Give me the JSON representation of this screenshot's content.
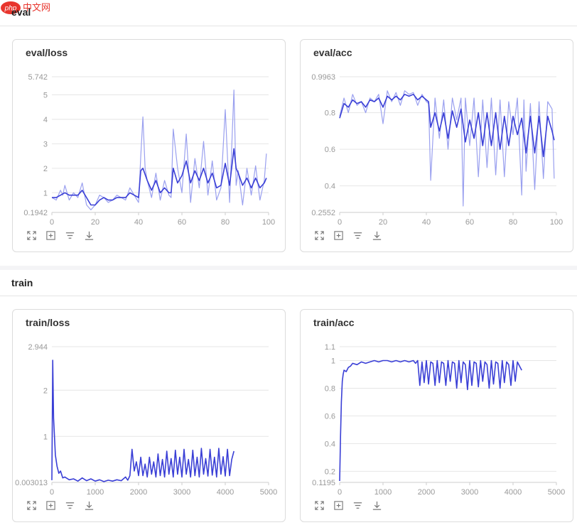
{
  "watermark": {
    "logo_text": "php",
    "text": "中文网"
  },
  "sections": [
    {
      "title": "eval"
    },
    {
      "title": "train"
    }
  ],
  "toolbar_icons": [
    "expand-icon",
    "fit-view-icon",
    "filter-icon",
    "download-icon"
  ],
  "colors": {
    "line_main": "#3a3fd6",
    "line_raw": "#9aa0ef",
    "grid": "#e6e6e6",
    "axis_text": "#999999"
  },
  "charts": [
    {
      "id": "eval-loss",
      "title": "eval/loss",
      "chart_data": {
        "type": "line",
        "xlim": [
          0,
          100
        ],
        "ylim": [
          0.1942,
          5.742
        ],
        "x_ticks": [
          0,
          20,
          40,
          60,
          80,
          100
        ],
        "y_ticks": [
          1,
          2,
          3,
          4,
          5
        ],
        "y_min_label": "0.1942",
        "y_max_label": "5.742",
        "series": [
          {
            "role": "raw",
            "x": [
              0,
              2,
              4,
              5,
              6,
              8,
              10,
              12,
              14,
              16,
              18,
              20,
              22,
              24,
              26,
              28,
              30,
              32,
              34,
              36,
              38,
              40,
              41,
              42,
              43,
              44,
              46,
              48,
              50,
              52,
              54,
              55,
              56,
              58,
              60,
              62,
              64,
              66,
              68,
              70,
              72,
              74,
              76,
              78,
              80,
              82,
              84,
              85,
              86,
              88,
              90,
              92,
              94,
              96,
              98,
              99
            ],
            "y": [
              0.8,
              0.7,
              1.1,
              0.9,
              1.3,
              0.7,
              1.0,
              0.8,
              1.4,
              0.5,
              0.3,
              0.5,
              0.9,
              0.8,
              0.6,
              0.7,
              0.9,
              0.8,
              0.7,
              1.2,
              0.9,
              0.6,
              2.5,
              4.1,
              2.0,
              1.5,
              0.8,
              1.8,
              0.7,
              1.5,
              0.9,
              0.8,
              3.6,
              2.0,
              1.0,
              3.4,
              0.6,
              2.4,
              1.2,
              3.1,
              0.9,
              2.3,
              0.7,
              1.2,
              4.4,
              0.6,
              5.2,
              1.3,
              1.9,
              0.5,
              2.0,
              0.9,
              2.1,
              0.7,
              1.5,
              2.6
            ]
          },
          {
            "role": "smoothed",
            "x": [
              0,
              2,
              4,
              6,
              8,
              10,
              12,
              14,
              16,
              18,
              20,
              22,
              24,
              26,
              28,
              30,
              32,
              34,
              36,
              38,
              40,
              41,
              42,
              44,
              46,
              48,
              50,
              52,
              54,
              55,
              56,
              58,
              60,
              62,
              64,
              66,
              68,
              70,
              72,
              74,
              76,
              78,
              80,
              82,
              84,
              85,
              86,
              88,
              90,
              92,
              94,
              96,
              98,
              99
            ],
            "y": [
              0.8,
              0.8,
              0.9,
              1.0,
              0.9,
              0.9,
              0.9,
              1.1,
              0.8,
              0.5,
              0.5,
              0.7,
              0.8,
              0.7,
              0.7,
              0.8,
              0.8,
              0.8,
              1.0,
              0.9,
              0.8,
              1.9,
              2.0,
              1.5,
              1.1,
              1.5,
              1.0,
              1.2,
              1.0,
              1.0,
              2.0,
              1.4,
              1.7,
              2.3,
              1.4,
              1.9,
              1.5,
              2.0,
              1.4,
              1.8,
              1.2,
              1.3,
              2.2,
              1.3,
              2.8,
              2.0,
              1.8,
              1.3,
              1.6,
              1.2,
              1.6,
              1.2,
              1.4,
              1.6
            ]
          }
        ]
      }
    },
    {
      "id": "eval-acc",
      "title": "eval/acc",
      "chart_data": {
        "type": "line",
        "xlim": [
          0,
          100
        ],
        "ylim": [
          0.2552,
          0.9963
        ],
        "x_ticks": [
          0,
          20,
          40,
          60,
          80,
          100
        ],
        "y_ticks": [
          0.4,
          0.6,
          0.8
        ],
        "y_min_label": "0.2552",
        "y_max_label": "0.9963",
        "series": [
          {
            "role": "raw",
            "x": [
              0,
              2,
              4,
              6,
              8,
              10,
              12,
              14,
              16,
              18,
              20,
              22,
              24,
              26,
              28,
              30,
              32,
              34,
              36,
              38,
              40,
              41,
              42,
              44,
              46,
              48,
              50,
              52,
              54,
              56,
              57,
              58,
              60,
              62,
              64,
              66,
              68,
              70,
              72,
              74,
              76,
              78,
              80,
              82,
              84,
              85,
              86,
              88,
              90,
              92,
              94,
              96,
              98,
              99
            ],
            "y": [
              0.78,
              0.88,
              0.8,
              0.9,
              0.84,
              0.86,
              0.8,
              0.88,
              0.86,
              0.9,
              0.74,
              0.92,
              0.86,
              0.91,
              0.84,
              0.92,
              0.9,
              0.91,
              0.84,
              0.9,
              0.86,
              0.85,
              0.43,
              0.88,
              0.66,
              0.87,
              0.6,
              0.88,
              0.76,
              0.88,
              0.29,
              0.88,
              0.62,
              0.88,
              0.45,
              0.87,
              0.5,
              0.88,
              0.46,
              0.87,
              0.45,
              0.86,
              0.68,
              0.88,
              0.35,
              0.87,
              0.48,
              0.85,
              0.38,
              0.86,
              0.44,
              0.86,
              0.82,
              0.44
            ]
          },
          {
            "role": "smoothed",
            "x": [
              0,
              2,
              4,
              6,
              8,
              10,
              12,
              14,
              16,
              18,
              20,
              22,
              24,
              26,
              28,
              30,
              32,
              34,
              36,
              38,
              40,
              41,
              42,
              44,
              46,
              48,
              50,
              52,
              54,
              56,
              58,
              60,
              62,
              64,
              66,
              68,
              70,
              72,
              74,
              76,
              78,
              80,
              82,
              84,
              86,
              88,
              90,
              92,
              94,
              96,
              98,
              99
            ],
            "y": [
              0.77,
              0.85,
              0.83,
              0.87,
              0.85,
              0.86,
              0.83,
              0.87,
              0.86,
              0.88,
              0.83,
              0.89,
              0.87,
              0.89,
              0.87,
              0.9,
              0.89,
              0.9,
              0.87,
              0.89,
              0.87,
              0.86,
              0.72,
              0.8,
              0.7,
              0.8,
              0.66,
              0.81,
              0.72,
              0.82,
              0.64,
              0.76,
              0.66,
              0.8,
              0.62,
              0.8,
              0.62,
              0.8,
              0.6,
              0.78,
              0.62,
              0.78,
              0.68,
              0.77,
              0.58,
              0.78,
              0.58,
              0.78,
              0.56,
              0.78,
              0.7,
              0.65
            ]
          }
        ]
      }
    },
    {
      "id": "train-loss",
      "title": "train/loss",
      "chart_data": {
        "type": "line",
        "xlim": [
          0,
          5000
        ],
        "ylim": [
          0.003013,
          2.944
        ],
        "x_ticks": [
          0,
          1000,
          2000,
          3000,
          4000,
          5000
        ],
        "y_ticks": [
          1,
          2
        ],
        "y_min_label": "0.003013",
        "y_max_label": "2.944",
        "series": [
          {
            "role": "smoothed",
            "x": [
              0,
              20,
              40,
              80,
              120,
              160,
              200,
              250,
              300,
              400,
              500,
              600,
              700,
              800,
              900,
              1000,
              1100,
              1200,
              1300,
              1400,
              1500,
              1600,
              1700,
              1750,
              1800,
              1850,
              1900,
              1950,
              2000,
              2050,
              2100,
              2150,
              2200,
              2250,
              2300,
              2350,
              2400,
              2450,
              2500,
              2550,
              2600,
              2650,
              2700,
              2750,
              2800,
              2850,
              2900,
              2950,
              3000,
              3050,
              3100,
              3150,
              3200,
              3250,
              3300,
              3350,
              3400,
              3450,
              3500,
              3550,
              3600,
              3650,
              3700,
              3750,
              3800,
              3850,
              3900,
              3950,
              4000,
              4050,
              4100,
              4150,
              4200
            ],
            "y": [
              0.05,
              2.65,
              1.4,
              0.6,
              0.35,
              0.2,
              0.25,
              0.1,
              0.12,
              0.06,
              0.08,
              0.03,
              0.1,
              0.04,
              0.08,
              0.03,
              0.06,
              0.02,
              0.05,
              0.03,
              0.06,
              0.04,
              0.12,
              0.05,
              0.15,
              0.72,
              0.25,
              0.45,
              0.15,
              0.55,
              0.15,
              0.4,
              0.12,
              0.55,
              0.18,
              0.45,
              0.12,
              0.62,
              0.15,
              0.5,
              0.12,
              0.68,
              0.18,
              0.52,
              0.12,
              0.7,
              0.18,
              0.55,
              0.12,
              0.72,
              0.18,
              0.5,
              0.12,
              0.7,
              0.15,
              0.55,
              0.12,
              0.74,
              0.18,
              0.52,
              0.14,
              0.72,
              0.16,
              0.55,
              0.12,
              0.74,
              0.18,
              0.56,
              0.14,
              0.72,
              0.15,
              0.5,
              0.68
            ]
          }
        ]
      }
    },
    {
      "id": "train-acc",
      "title": "train/acc",
      "chart_data": {
        "type": "line",
        "xlim": [
          0,
          5000
        ],
        "ylim": [
          0.1195,
          1.1
        ],
        "x_ticks": [
          0,
          1000,
          2000,
          3000,
          4000,
          5000
        ],
        "y_ticks": [
          0.2,
          0.4,
          0.6,
          0.8,
          1
        ],
        "y_min_label": "0.1195",
        "y_max_label": "1.1",
        "series": [
          {
            "role": "smoothed",
            "x": [
              0,
              20,
              40,
              60,
              80,
              100,
              150,
              200,
              250,
              300,
              400,
              500,
              600,
              700,
              800,
              900,
              1000,
              1100,
              1200,
              1300,
              1400,
              1500,
              1600,
              1700,
              1750,
              1800,
              1850,
              1900,
              1950,
              2000,
              2050,
              2100,
              2150,
              2200,
              2250,
              2300,
              2350,
              2400,
              2450,
              2500,
              2550,
              2600,
              2650,
              2700,
              2750,
              2800,
              2850,
              2900,
              2950,
              3000,
              3050,
              3100,
              3150,
              3200,
              3250,
              3300,
              3350,
              3400,
              3450,
              3500,
              3550,
              3600,
              3650,
              3700,
              3750,
              3800,
              3850,
              3900,
              3950,
              4000,
              4050,
              4100,
              4150,
              4200
            ],
            "y": [
              0.13,
              0.45,
              0.7,
              0.85,
              0.9,
              0.93,
              0.92,
              0.95,
              0.96,
              0.98,
              0.97,
              0.99,
              0.98,
              0.99,
              1.0,
              0.99,
              1.0,
              1.0,
              0.99,
              1.0,
              0.99,
              1.0,
              0.99,
              1.0,
              0.98,
              1.0,
              0.82,
              0.99,
              0.84,
              1.0,
              0.83,
              0.99,
              0.98,
              0.82,
              1.0,
              0.84,
              0.99,
              0.98,
              0.82,
              1.0,
              0.85,
              0.99,
              0.98,
              0.8,
              1.0,
              0.84,
              0.99,
              0.97,
              0.79,
              1.0,
              0.82,
              0.99,
              0.98,
              0.81,
              1.0,
              0.85,
              0.99,
              0.97,
              0.8,
              1.0,
              0.83,
              0.99,
              0.98,
              0.8,
              1.0,
              0.84,
              0.99,
              0.97,
              0.82,
              1.0,
              0.85,
              0.99,
              0.96,
              0.93
            ]
          }
        ]
      }
    }
  ]
}
